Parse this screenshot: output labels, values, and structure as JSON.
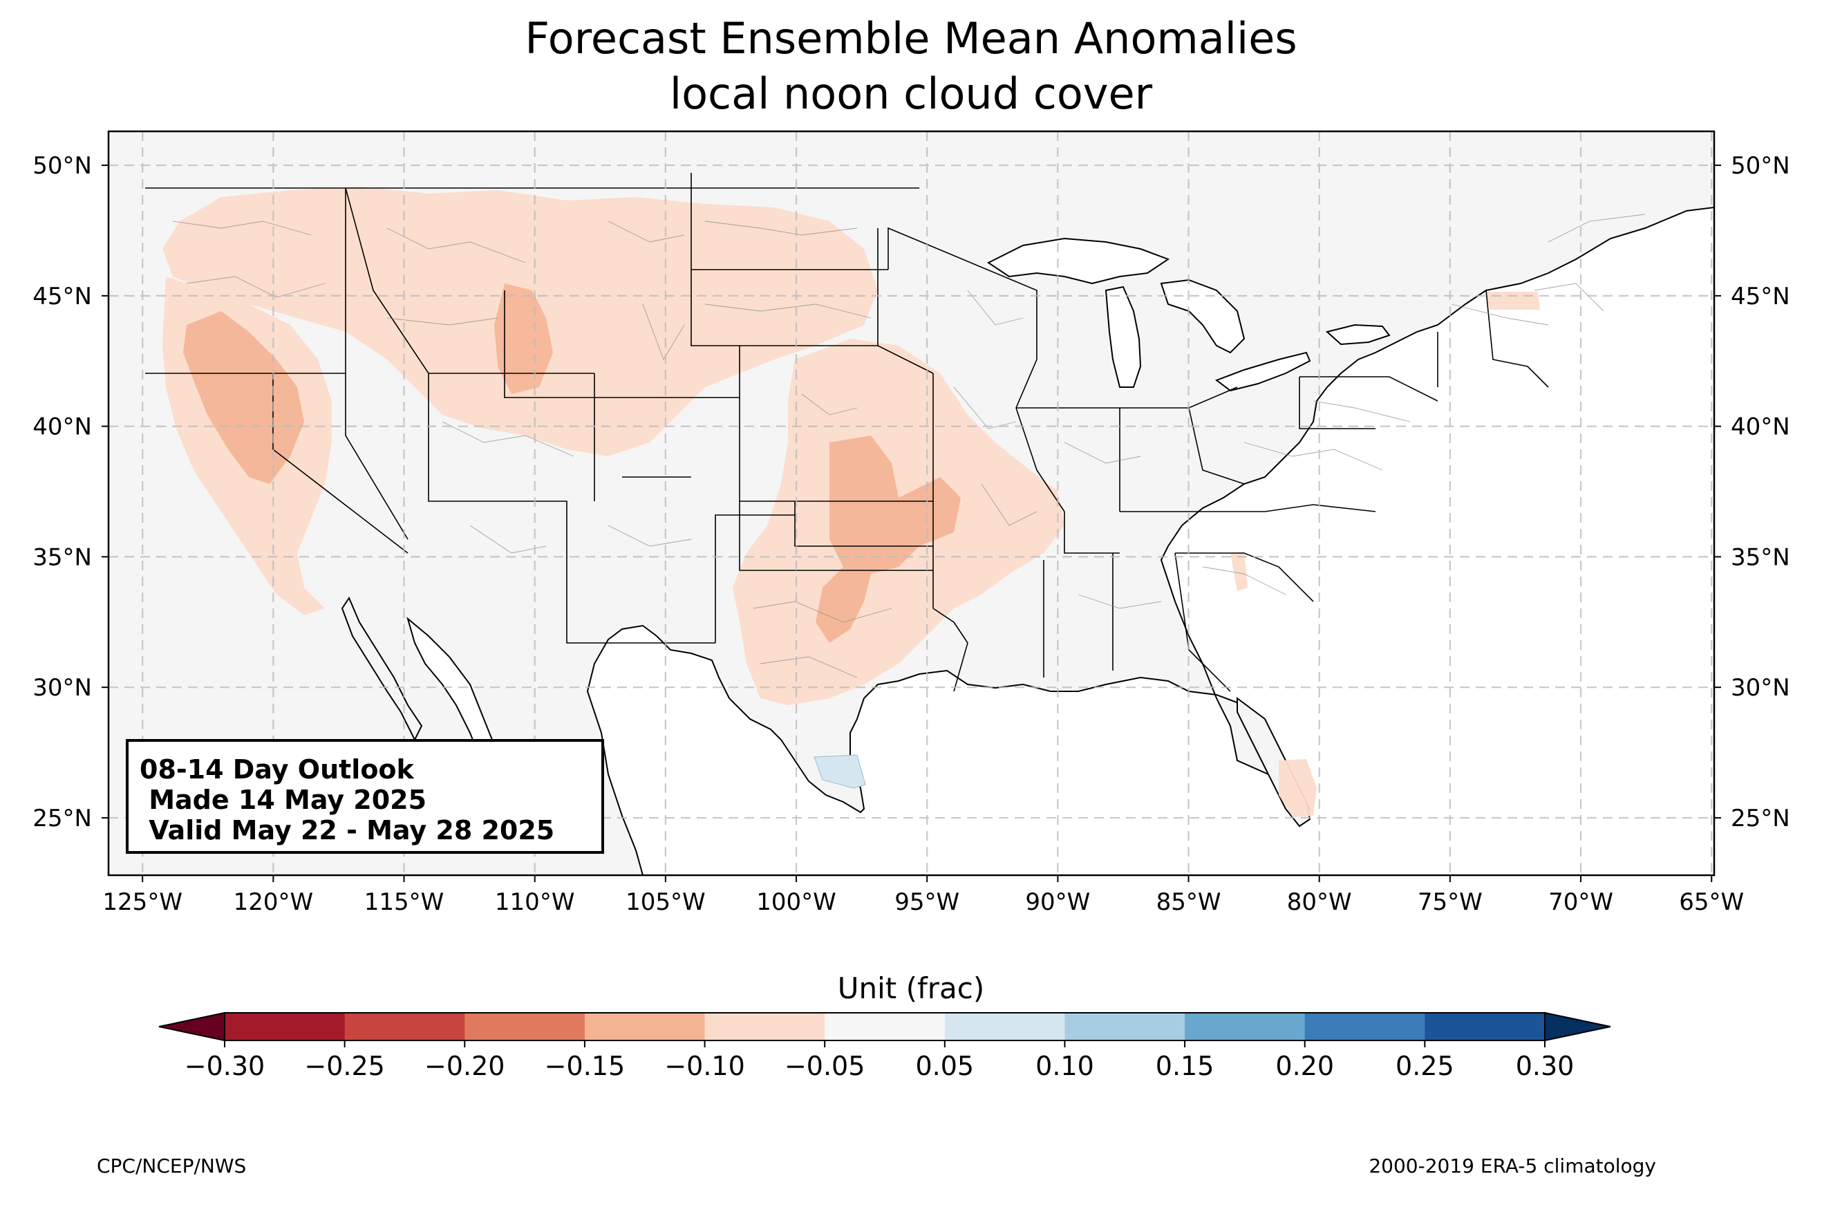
{
  "title": {
    "line1": "Forecast Ensemble Mean Anomalies",
    "line2": "local noon cloud cover"
  },
  "map": {
    "region": "Contiguous United States",
    "projection": "PlateCarree",
    "lon_range": [
      -126.3,
      -64.9
    ],
    "lat_range": [
      22.8,
      51.3
    ],
    "gridlines": "dashed",
    "lat_ticks": [
      "25°N",
      "30°N",
      "35°N",
      "40°N",
      "45°N",
      "50°N"
    ],
    "lon_ticks": [
      "125°W",
      "120°W",
      "115°W",
      "110°W",
      "105°W",
      "100°W",
      "95°W",
      "90°W",
      "85°W",
      "80°W",
      "75°W",
      "70°W",
      "65°W"
    ],
    "land_color": "#f5f5f5",
    "border_color": "#000000",
    "county_line_color": "#888888"
  },
  "outlook_box": {
    "line1": "08-14 Day Outlook",
    "line2": " Made 14 May 2025",
    "line3": " Valid May 22 - May 28 2025"
  },
  "colorbar": {
    "label": "Unit (frac)",
    "ticks": [
      "−0.30",
      "−0.25",
      "−0.20",
      "−0.15",
      "−0.10",
      "−0.05",
      "0.05",
      "0.10",
      "0.15",
      "0.20",
      "0.25",
      "0.30"
    ],
    "colors": [
      "#a31a2b",
      "#c8453f",
      "#e07a5f",
      "#f4b393",
      "#fbdccb",
      "#f7f7f7",
      "#d6e6f0",
      "#a7cde3",
      "#6aa7ce",
      "#3a7bb8",
      "#1c5597"
    ],
    "extend_low_color": "#67001f",
    "extend_high_color": "#053061"
  },
  "anomaly_regions": [
    {
      "name": "northwest-band",
      "level": "-0.10 to -0.05",
      "color": "#fbdccb"
    },
    {
      "name": "northern-california-nevada",
      "level": "-0.15 to -0.10",
      "color": "#f4b393"
    },
    {
      "name": "central-plains",
      "level": "-0.15 to -0.10",
      "color": "#f4b393"
    },
    {
      "name": "south-texas",
      "level": "0.05 to 0.10",
      "color": "#d6e6f0"
    },
    {
      "name": "south-florida",
      "level": "-0.10 to -0.05",
      "color": "#fbdccb"
    }
  ],
  "credits": {
    "left": "CPC/NCEP/NWS",
    "right": "2000-2019 ERA-5 climatology"
  }
}
